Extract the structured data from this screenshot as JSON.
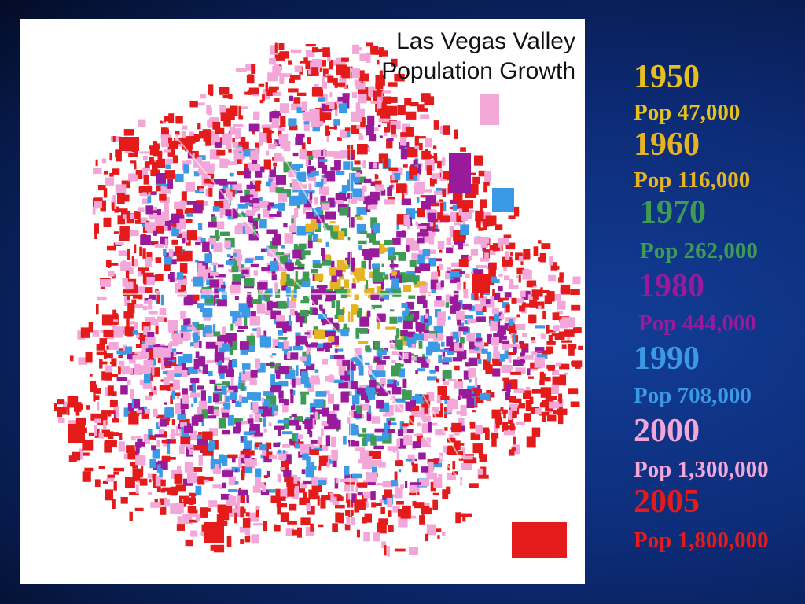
{
  "map": {
    "title_line1": "Las Vegas Valley",
    "title_line2": "Population Growth"
  },
  "legend": [
    {
      "year": "1950",
      "pop": "Pop    47,000",
      "color": "#e6c01c"
    },
    {
      "year": "1960",
      "pop": "Pop   116,000",
      "color": "#e6b422"
    },
    {
      "year": "1970",
      "pop": "Pop   262,000",
      "color": "#3f9b54"
    },
    {
      "year": "1980",
      "pop": "Pop   444,000",
      "color": "#9a1a9c"
    },
    {
      "year": "1990",
      "pop": "Pop   708,000",
      "color": "#3b9ae6"
    },
    {
      "year": "2000",
      "pop": "Pop 1,300,000",
      "color": "#f3a6d8"
    },
    {
      "year": "2005",
      "pop": "Pop 1,800,000",
      "color": "#e41b1b"
    }
  ]
}
